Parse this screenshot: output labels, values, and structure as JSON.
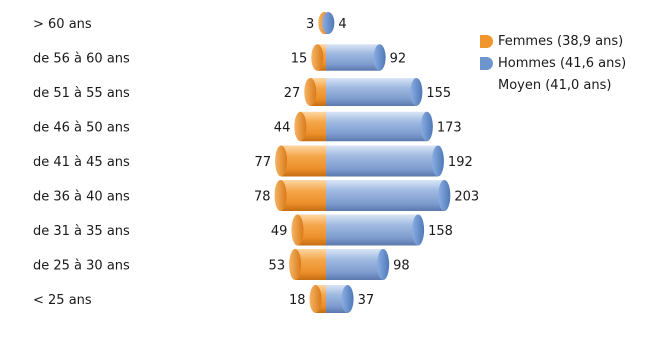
{
  "chart_data": {
    "type": "bar",
    "orientation": "horizontal",
    "layout": "population-pyramid",
    "categories": [
      "> 60 ans",
      "de 56 à 60 ans",
      "de 51 à 55 ans",
      "de 46 à 50 ans",
      "de 41 à 45 ans",
      "de 36 à 40 ans",
      "de 31 à 35 ans",
      "de 25 à 30 ans",
      "< 25 ans"
    ],
    "series": [
      {
        "name": "Femmes (38,9 ans)",
        "values": [
          3,
          15,
          27,
          44,
          77,
          78,
          49,
          53,
          18
        ],
        "color": "#f0962d",
        "side": "left"
      },
      {
        "name": "Hommes (41,6 ans)",
        "values": [
          4,
          92,
          155,
          173,
          192,
          203,
          158,
          98,
          37
        ],
        "color": "#7b9fd4",
        "side": "right"
      }
    ],
    "extra_legend": "Moyen (41,0 ans)",
    "legend_position": "top-right",
    "grid": false
  }
}
